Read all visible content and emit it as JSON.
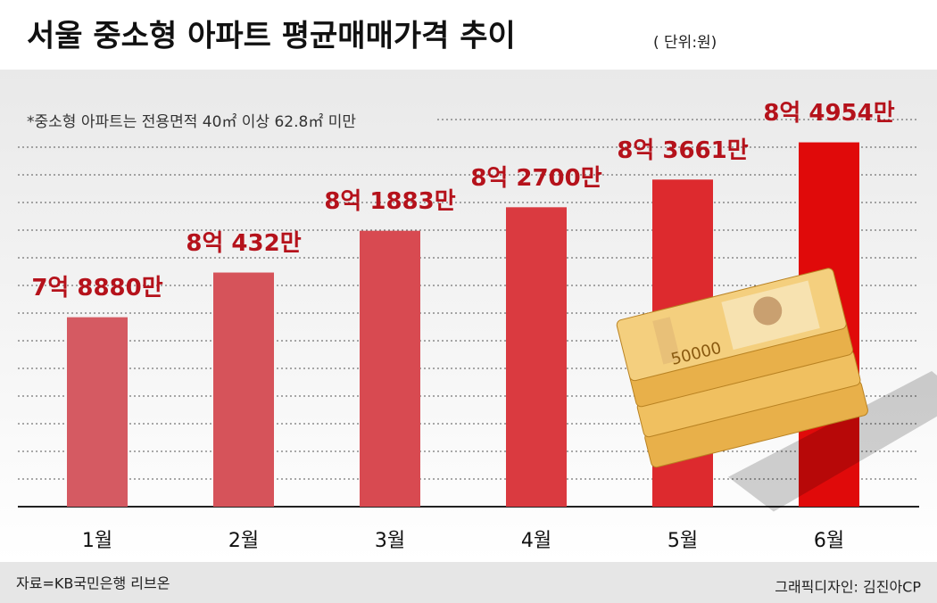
{
  "chart_data": {
    "type": "bar",
    "title": "서울 중소형 아파트 평균매매가격 추이",
    "unit_note": "( 단위:원)",
    "subtitle": "*중소형 아파트는 전용면적 40㎡ 이상 62.8㎡ 미만",
    "categories": [
      "1월",
      "2월",
      "3월",
      "4월",
      "5월",
      "6월"
    ],
    "values": [
      78880,
      80432,
      81883,
      82700,
      83661,
      84954
    ],
    "value_labels": [
      "7억 8880만",
      "8억 432만",
      "8억 1883만",
      "8억 2700만",
      "8억 3661만",
      "8억 4954만"
    ],
    "colors": [
      "#d55a62",
      "#d6535a",
      "#d84a51",
      "#da3a40",
      "#dd2a2e",
      "#e00a0a"
    ],
    "ylim": [
      72300,
      86800
    ],
    "source": "자료=KB국민은행 리브온",
    "credit": "그래픽디자인: 김진아CP"
  }
}
